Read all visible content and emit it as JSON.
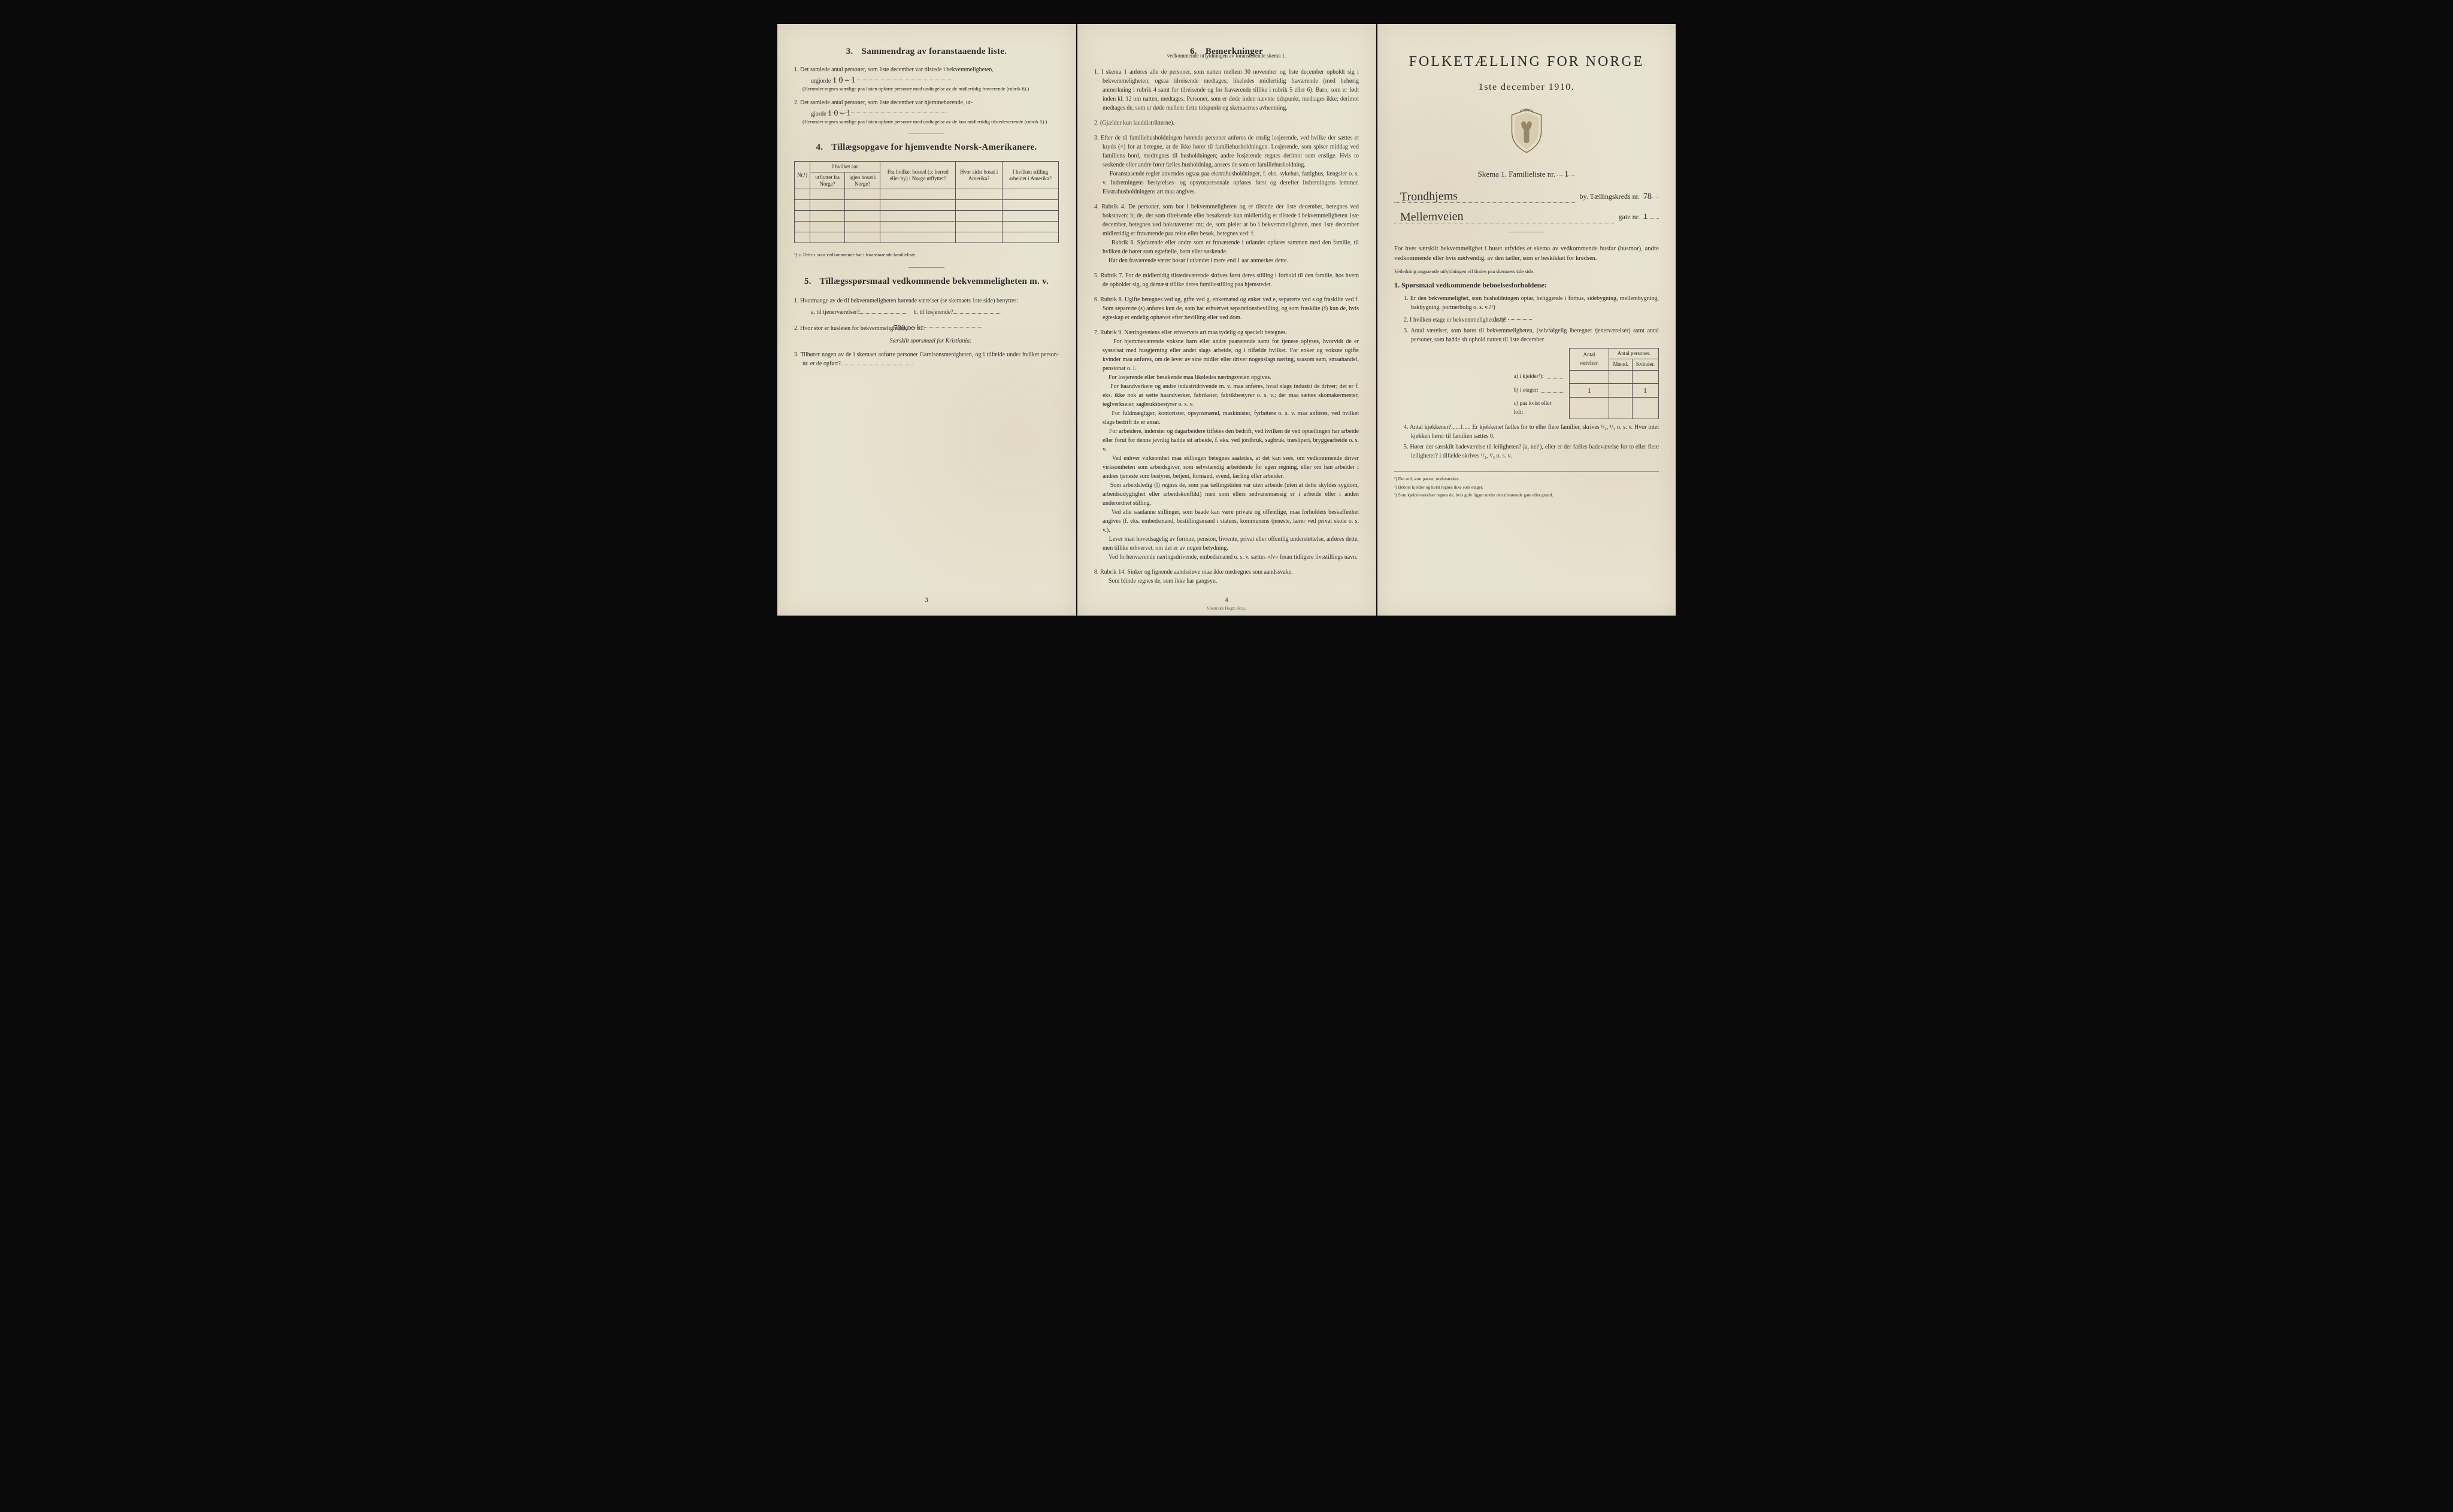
{
  "colors": {
    "paper": "#e8e2d0",
    "ink": "#2a2a2a",
    "background": "#0a0a0a",
    "rule": "#555555"
  },
  "typography": {
    "body_fontsize_pt": 10,
    "heading_fontsize_pt": 15,
    "bigtitle_fontsize_pt": 24,
    "footnote_fontsize_pt": 8
  },
  "page1": {
    "sec3": {
      "title": "Sammendrag av foranstaaende liste.",
      "num": "3.",
      "q1": "Det samlede antal personer, som 1ste december var tilstede i bekvemmeligheten,",
      "q1_line2": "utgjorde",
      "q1_hand": "1   0 – 1",
      "q1_note": "(Herunder regnes samtlige paa listen opførte personer med undtagelse av de midlertidig fraværende (rubrik 6).)",
      "q2": "Det samlede antal personer, som 1ste december var hjemmehørende, ut-",
      "q2_line2": "gjorde",
      "q2_hand": "1   0 – 1",
      "q2_note": "(Herunder regnes samtlige paa listen opførte personer med undtagelse av de kun midlertidig tilstedeværende (rubrik 5).)"
    },
    "sec4": {
      "num": "4.",
      "title": "Tillægsopgave for hjemvendte Norsk-Amerikanere.",
      "table": {
        "head_row1": [
          "Nr.¹)",
          "I hvilket aar",
          "Fra hvilket bosted (ɔ: herred eller by) i Norge utflyttet?",
          "Hvor sidst bosat i Amerika?",
          "I hvilken stilling arbeidet i Amerika?"
        ],
        "head_sub": [
          "utflyttet fra Norge?",
          "igjen bosat i Norge?"
        ],
        "empty_rows": 5
      },
      "footnote": "¹) ɔ: Det nr. som vedkommende har i foranstaaende familieliste."
    },
    "sec5": {
      "num": "5.",
      "title": "Tillægsspørsmaal vedkommende bekvemmeligheten m. v.",
      "q1": "Hvormange av de til bekvemmeligheten hørende værelser (se skemaets 1ste side) benyttes:",
      "q1a": "a.  til tjenerværelser?",
      "q1b": "b.  til losjerende?",
      "q2": "Hvor stor er husleien for bekvemmeligheten?",
      "q2_hand": "700,oo kr.",
      "q2_sub": "Særskilt spørsmaal for Kristiania:",
      "q3": "Tilhører nogen av de i skemaet anførte personer Garnisonsmenigheten, og i tilfælde under hvilket person-nr. er de opført?"
    },
    "pagenum": "3"
  },
  "page2": {
    "sec6": {
      "num": "6.",
      "title": "Bemerkninger",
      "subtitle": "vedkommende utfyldningen av foranstaaende skema 1.",
      "items": [
        "I skema 1 anføres alle de personer, som natten mellem 30 november og 1ste december opholdt sig i bekvemmeligheten; ogsaa tilreisende medtages; likeledes midlertidig fraværende (med behørig anmerkning i rubrik 4 samt for tilreisende og for fraværende tillike i rubrik 5 eller 6). Barn, som er født inden kl. 12 om natten, medtages. Personer, som er døde inden nævnte tidspunkt, medtages ikke; derimot medtages de, som er døde mellem dette tidspunkt og skemaernes avhentning.",
        "(Gjælder kun landdistrikterne).",
        "Efter de til familiehusholdningen hørende personer anføres de enslig losjerende, ved hvilke der sættes et kryds (×) for at betegne, at de ikke hører til familiehusholdningen. Losjerende, som spiser middag ved familiens bord, medregnes til husholdningen; andre losjerende regnes derimot som enslige. Hvis to søskende eller andre fører fælles husholdning, ansees de som en familiehusholdning.\nForanstaaende regler anvendes ogsaa paa ekstrahusholdninger, f. eks. sykehus, fattighus, fængsler o. s. v. Indretningens bestyrelses- og opsynspersonale opføres først og derefter indretningens lemmer. Ekstrahusholdningens art maa angives.",
        "Rubrik 4. De personer, som bor i bekvemmeligheten og er tilstede der 1ste december, betegnes ved bokstaven: b; de, der som tilreisende eller besøkende kun midlertidig er tilstede i bekvemmeligheten 1ste december, betegnes ved bokstaverne: mt; de, som pleier at bo i bekvemmeligheten, men 1ste december midlertidig er fraværende paa reise eller besøk, betegnes ved: f.\nRubrik 6. Sjøfarende eller andre som er fraværende i utlandet opføres sammen med den familie, til hvilken de hører som egtefælle, barn eller søskende.\nHar den fraværende været bosat i utlandet i mere end 1 aar anmerkes dette.",
        "Rubrik 7. For de midlertidig tilstedeværende skrives først deres stilling i forhold til den familie, hos hvem de opholder sig, og dernæst tillike deres familiestilling paa hjemstedet.",
        "Rubrik 8. Ugifte betegnes ved ug, gifte ved g, enkemænd og enker ved e, separerte ved s og fraskilte ved f. Som separerte (s) anføres kun de, som har erhvervet separationsbevilling, og som fraskilte (f) kun de, hvis egteskap er endelig ophævet efter bevilling eller ved dom.",
        "Rubrik 9. Næringsveiens eller erhvervets art maa tydelig og specielt betegnes.\nFor hjemmeværende voksne barn eller andre paarørende samt for tjenere oplyses, hvorvidt de er sysselsat med husgjerning eller andet slags arbeide, og i tilfælde hvilket. For enker og voksne ugifte kvinder maa anføres, om de lever av sine midler eller driver nogenslags næring, saasom søm, smaahandel, pensionat o. l.\nFor losjerende eller besøkende maa likeledes næringsveien opgives.\nFor haandverkere og andre industridrivende m. v. maa anføres, hvad slags industri de driver; det er f. eks. ikke nok at sætte haandverker, fabrikeier, fabrikbestyrer o. s. v.; der maa sættes skomakermester, teglverkseier, sagbruksbestyrer o. s. v.\nFor fuldmægtiger, kontorister, opsynsmænd, maskinister, fyrbøtere o. s. v. maa anføres, ved hvilket slags bedrift de er ansat.\nFor arbeidere, inderster og dagarbeidere tilføies den bedrift, ved hvilken de ved optællingen har arbeide eller forut for denne jevnlig hadde sit arbeide, f. eks. ved jordbruk, sagbruk, træsliperi, bryggearbeide o. s. v.\nVed enhver virksomhet maa stillingen betegnes saaledes, at det kan sees, om vedkommende driver virksomheten som arbeidsgiver, som selvstændig arbeidende for egen regning, eller om han arbeider i andres tjeneste som bestyrer, betjent, formand, svend, lærling eller arbeider.\nSom arbeidsledig (l) regnes de, som paa tællingstiden var uten arbeide (uten at dette skyldes sygdom, arbeidsudygtighet eller arbeidskonflikt) men som ellers sedvanemæssig er i arbeide eller i anden underordnet stilling.\nVed alle saadanne stillinger, som baade kan være private og offentlige, maa forholdets beskaffenhet angives (f. eks. embedsmand, bestillingsmand i statens, kommunens tjeneste, lærer ved privat skole o. s. v.).\nLever man hovedsagelig av formue, pension, livrente, privat eller offentlig understøttelse, anføres dette, men tillike erhvervet, om det er av nogen betydning.\nVed forhenværende næringsdrivende, embedsmænd o. s. v. sættes «fv» foran tidligere livsstillings navn.",
        "Rubrik 14. Sinker og lignende aandssløve maa ikke medregnes som aandssvake.\nSom blinde regnes de, som ikke har gangsyn."
      ]
    },
    "pagenum": "4",
    "imprint": "Steen'ske Bogtr. Kr.a."
  },
  "page3": {
    "title": "FOLKETÆLLING FOR NORGE",
    "date": "1ste december 1910.",
    "skema_label": "Skema 1.   Familieliste nr.",
    "skema_hand": "1",
    "line_by_label": "by.  Tællingskreds nr.",
    "line_by_hand": "Trondhjems",
    "line_by_num_hand": "78",
    "line_gate_label": "gate nr.",
    "line_gate_hand": "Mellemveien",
    "line_gate_num_hand": "1",
    "intro": "For hver særskilt bekvemmelighet i huset utfyldes et skema av vedkommende husfar (husmor), andre vedkommende eller hvis nødvendig, av den tæller, som er beskikket for kredsen.",
    "intro_sub": "Veiledning angaaende utfyldningen vil findes paa skemaets 4de side.",
    "sec1": {
      "num": "1.",
      "title": "Spørsmaal vedkommende beboelsesforholdene:",
      "q1": "Er den bekvemmelighet, som husholdningen optar, beliggende i forhus, sidebygning, mellembygning, bakbygning, portnerbolig o. s. v.?¹)",
      "q2": "I hvilken etage er bekvemmeligheten ²)?",
      "q2_hand": "1ste",
      "q3": "Antal værelser, som hører til bekvemmeligheten, (selvfølgelig iberegnet tjenerværelser) samt antal personer, som hadde sit ophold natten til 1ste december",
      "table": {
        "head": [
          "",
          "Antal værelser.",
          "Antal personer."
        ],
        "sub_head": [
          "Mænd.",
          "Kvinder."
        ],
        "rows": [
          {
            "label": "a) i kjelder³):",
            "v": "",
            "m": "",
            "k": ""
          },
          {
            "label": "b) i etager:",
            "v": "1",
            "m": "",
            "k": "1"
          },
          {
            "label": "c) paa kvist eller loft:",
            "v": "",
            "m": "",
            "k": ""
          }
        ]
      },
      "q4": "Antal kjøkkener?......1.....  Er kjøkkenet fælles for to eller flere familier, skrives ¹/₂, ¹/₃ o. s. v.  Hvor intet kjøkken hører til familien sættes 0.",
      "q5": "Hører der særskilt badeværelse til leiligheten?  ja, nei¹), eller er der fælles badeværelse for to eller flere leiligheter?  i tilfælde skrives ¹/₂, ¹/₃ o. s. v."
    },
    "footnotes": [
      "¹) Det ord, som passer, understrekes.",
      "²) Beboet kjelder og kvist regnes ikke som etager.",
      "³) Som kjelderværelser regnes de, hvis gulv ligger under den tilstøtende gate eller grund."
    ]
  }
}
